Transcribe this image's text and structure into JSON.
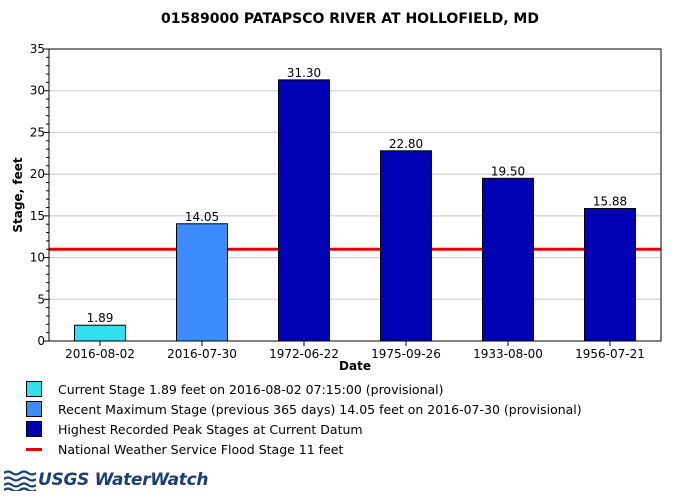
{
  "chart_data": {
    "type": "bar",
    "title": "01589000 PATAPSCO RIVER AT HOLLOFIELD, MD",
    "xlabel": "Date",
    "ylabel": "Stage, feet",
    "ylim": [
      0,
      35
    ],
    "yticks": [
      0,
      5,
      10,
      15,
      20,
      25,
      30,
      35
    ],
    "grid": true,
    "categories": [
      "2016-08-02",
      "2016-07-30",
      "1972-06-22",
      "1975-09-26",
      "1933-08-00",
      "1956-07-21"
    ],
    "values": [
      1.89,
      14.05,
      31.3,
      22.8,
      19.5,
      15.88
    ],
    "value_labels": [
      "1.89",
      "14.05",
      "31.30",
      "22.80",
      "19.50",
      "15.88"
    ],
    "bar_series": [
      "current",
      "recent",
      "peak",
      "peak",
      "peak",
      "peak"
    ],
    "flood_stage": 11,
    "legend_position": "bottom"
  },
  "colors": {
    "current": "#33e0f0",
    "recent": "#3d8cff",
    "peak": "#0000b4",
    "flood_line": "#e80000",
    "grid": "#c8c8c8",
    "logo": "#1a3f74"
  },
  "legend": [
    {
      "key": "current",
      "kind": "box",
      "label": "Current Stage 1.89 feet on 2016-08-02 07:15:00 (provisional)"
    },
    {
      "key": "recent",
      "kind": "box",
      "label": "Recent Maximum Stage (previous 365 days) 14.05 feet on 2016-07-30 (provisional)"
    },
    {
      "key": "peak",
      "kind": "box",
      "label": "Highest Recorded Peak Stages at Current Datum"
    },
    {
      "key": "flood_line",
      "kind": "line",
      "label": "National Weather Service Flood Stage 11 feet"
    }
  ],
  "footer": {
    "logo_text": "USGS WaterWatch",
    "logo_icon": "usgs-logo-icon"
  }
}
